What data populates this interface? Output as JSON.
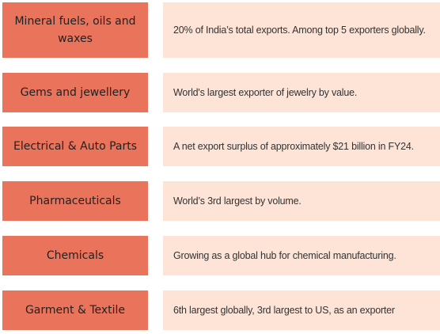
{
  "rows": [
    {
      "category": "Mineral fuels, oils and waxes",
      "description": "20% of India’s total exports. Among top 5 exporters globally."
    },
    {
      "category": "Gems and jewellery",
      "description": "World's largest exporter of jewelry by value."
    },
    {
      "category": "Electrical & Auto Parts",
      "description": "A net export surplus of approximately $21 billion in FY24."
    },
    {
      "category": "Pharmaceuticals",
      "description": "World’s 3rd largest by volume."
    },
    {
      "category": "Chemicals",
      "description": "Growing as a global hub for chemical manufacturing."
    },
    {
      "category": "Garment & Textile",
      "description": "6th largest globally, 3rd largest to US, as an exporter"
    }
  ],
  "colors": {
    "category_fill": "#e9735b",
    "description_fill": "#fde4d7",
    "text": "#222222"
  }
}
